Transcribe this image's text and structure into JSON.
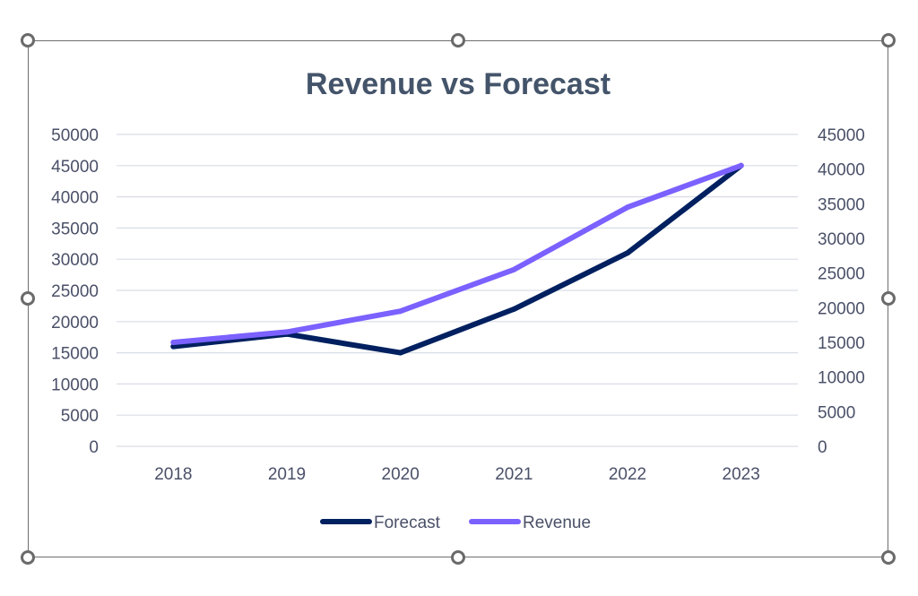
{
  "chart_data": {
    "type": "line",
    "title": "Revenue vs Forecast",
    "categories": [
      "2018",
      "2019",
      "2020",
      "2021",
      "2022",
      "2023"
    ],
    "series": [
      {
        "name": "Forecast",
        "axis": "left",
        "color": "#002060",
        "values": [
          16000,
          18000,
          15000,
          22000,
          31000,
          45000
        ]
      },
      {
        "name": "Revenue",
        "axis": "right",
        "color": "#7b61ff",
        "values": [
          15000,
          16500,
          19500,
          25500,
          34500,
          40500
        ]
      }
    ],
    "y_left": {
      "min": 0,
      "max": 50000,
      "ticks": [
        "0",
        "5000",
        "10000",
        "15000",
        "20000",
        "25000",
        "30000",
        "35000",
        "40000",
        "45000",
        "50000"
      ]
    },
    "y_right": {
      "min": 0,
      "max": 45000,
      "ticks": [
        "0",
        "5000",
        "10000",
        "15000",
        "20000",
        "25000",
        "30000",
        "35000",
        "40000",
        "45000"
      ]
    },
    "grid": true,
    "legend": "bottom",
    "xlabel": "",
    "ylabel": ""
  },
  "colors": {
    "gridline": "#d9dde6",
    "axis_text": "#4a5068",
    "title": "#44546a",
    "frame": "#6e6e6e"
  }
}
